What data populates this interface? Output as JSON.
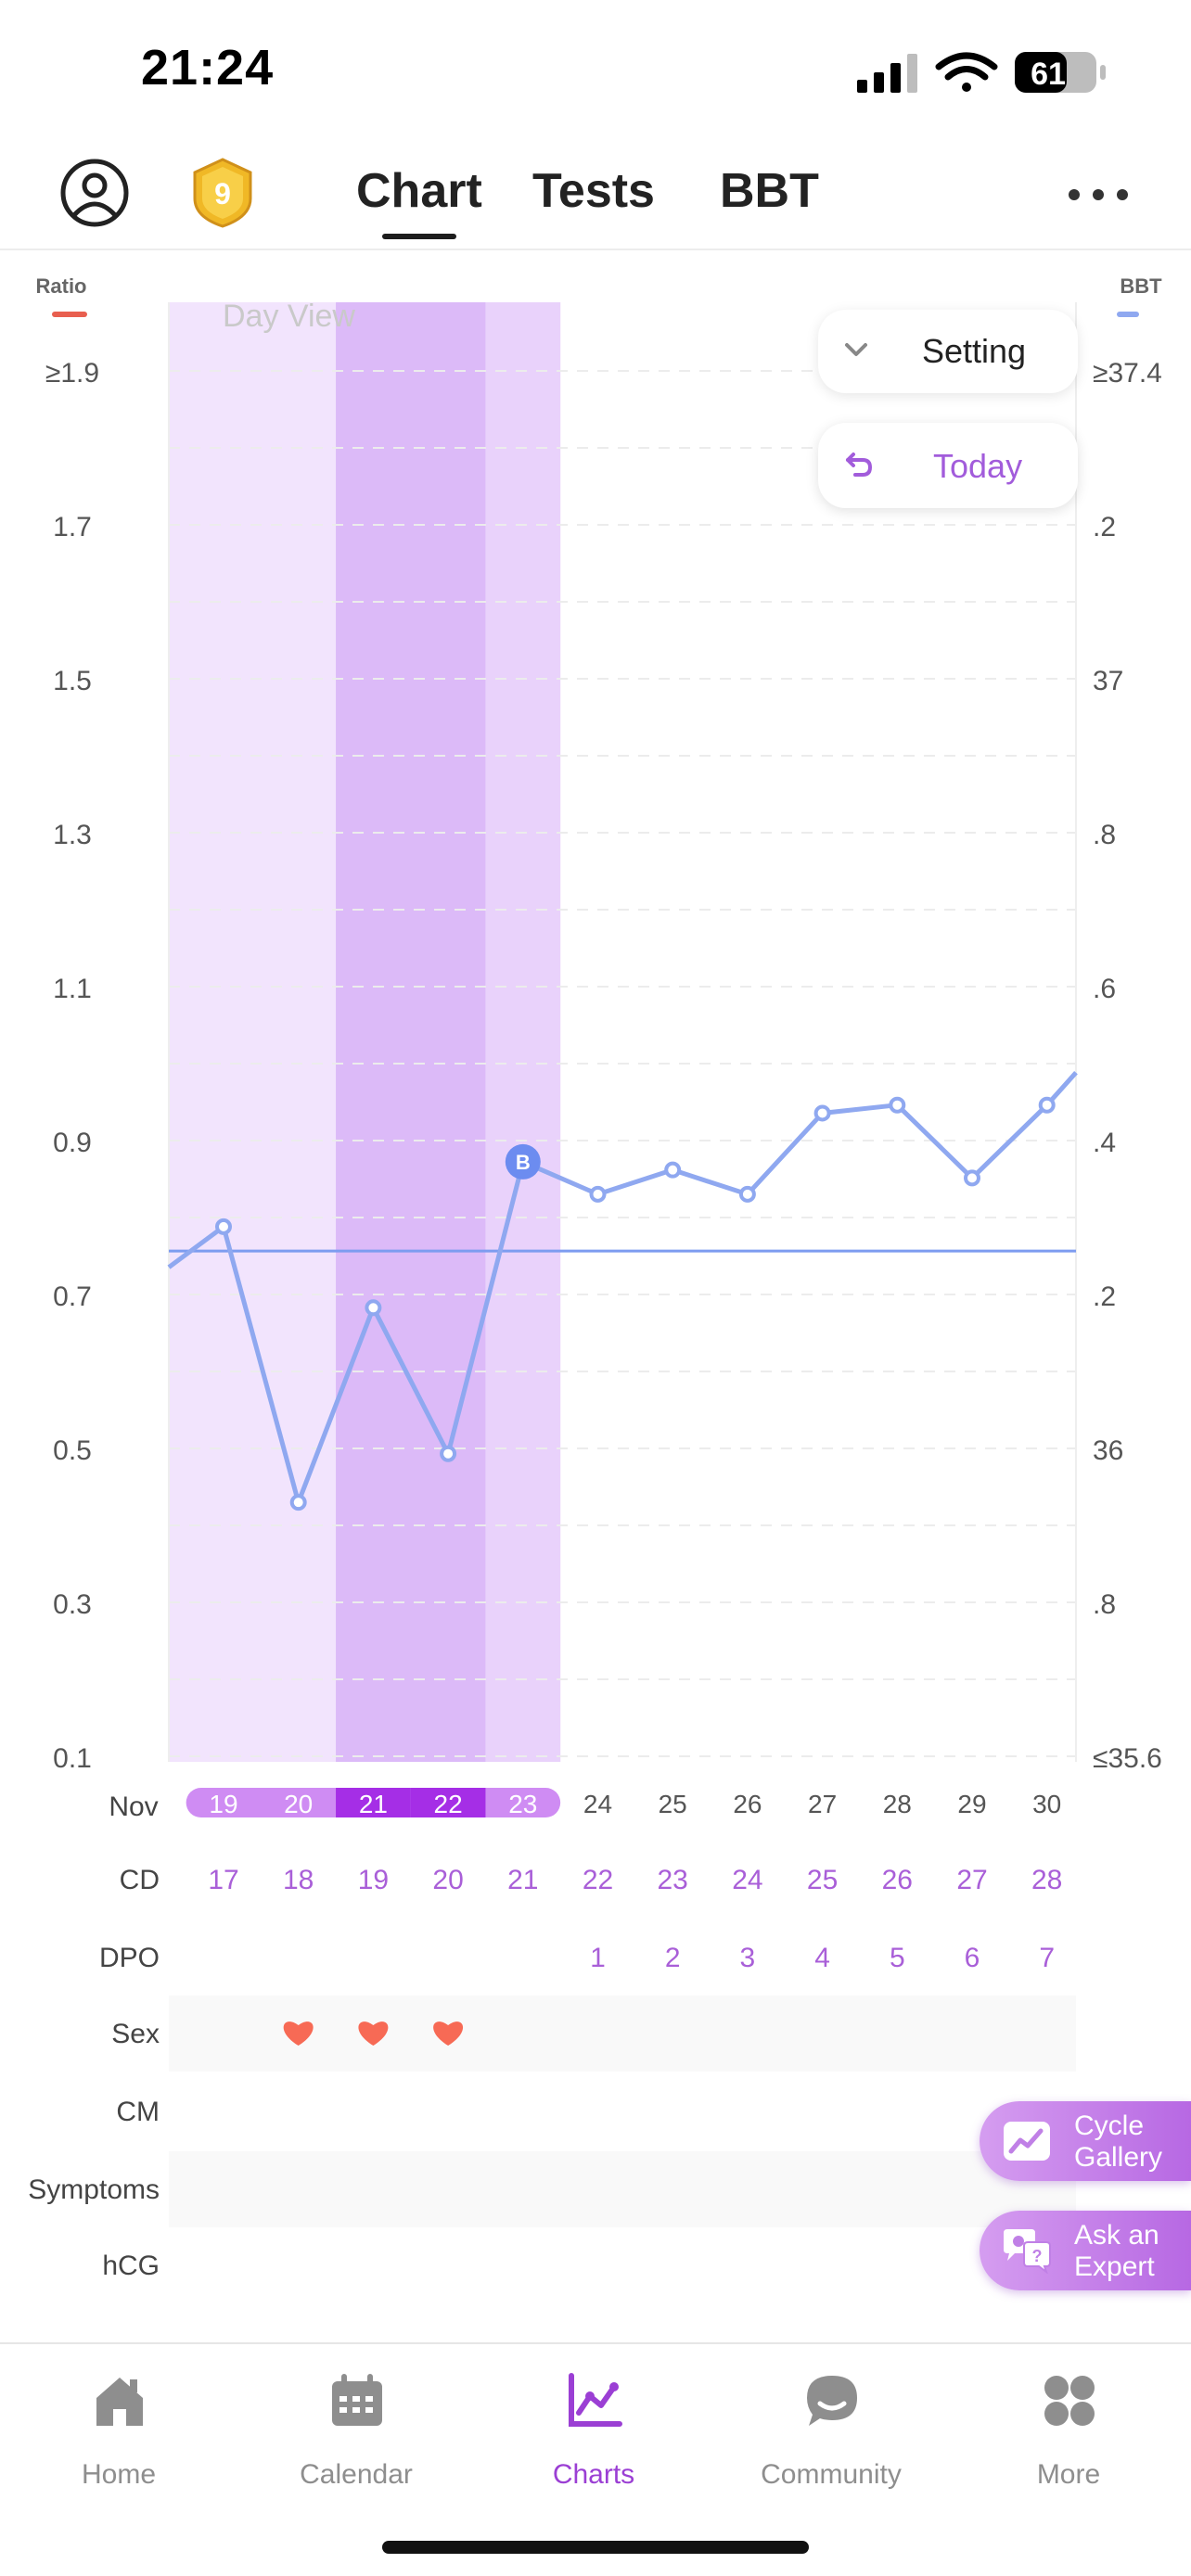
{
  "status_bar": {
    "time": "21:24",
    "battery": "61"
  },
  "nav": {
    "badge_number": "9",
    "tabs": [
      {
        "label": "Chart",
        "active": true
      },
      {
        "label": "Tests",
        "active": false
      },
      {
        "label": "BBT",
        "active": false
      }
    ]
  },
  "chart": {
    "day_view_label": "Day View",
    "left_axis_title": "Ratio",
    "right_axis_title": "BBT",
    "left_ticks": [
      "≥1.9",
      "1.7",
      "1.5",
      "1.3",
      "1.1",
      "0.9",
      "0.7",
      "0.5",
      "0.3",
      "0.1"
    ],
    "right_ticks": [
      "≥37.4",
      ".2",
      "37",
      ".8",
      ".6",
      ".4",
      ".2",
      "36",
      ".8",
      "≤35.6"
    ],
    "month_label": "Nov",
    "dates": [
      "19",
      "20",
      "21",
      "22",
      "23",
      "24",
      "25",
      "26",
      "27",
      "28",
      "29",
      "30"
    ],
    "date_highlight": [
      "fertile",
      "fertile",
      "peak",
      "peak",
      "fertile",
      "none",
      "none",
      "none",
      "none",
      "none",
      "none",
      "none"
    ],
    "row_labels": {
      "cd": "CD",
      "dpo": "DPO",
      "sex": "Sex",
      "cm": "CM",
      "symptoms": "Symptoms",
      "hcg": "hCG"
    },
    "cd_values": [
      "17",
      "18",
      "19",
      "20",
      "21",
      "22",
      "23",
      "24",
      "25",
      "26",
      "27",
      "28"
    ],
    "dpo_values": [
      "",
      "",
      "",
      "",
      "",
      "1",
      "2",
      "3",
      "4",
      "5",
      "6",
      "7"
    ],
    "sex_days": [
      false,
      true,
      true,
      true,
      false,
      false,
      false,
      false,
      false,
      false,
      false,
      false
    ],
    "fertile_window": {
      "start_index": 0,
      "end_index": 4
    },
    "peak_window": {
      "start_index": 2,
      "end_index": 3
    },
    "coverline": 36.23,
    "marker_label": "B",
    "marker_index": 4,
    "bbt_range": [
      35.6,
      37.4
    ],
    "bbt_prev_day": 36.21,
    "bbt_next_day": 36.45,
    "bbt_values": [
      36.26,
      35.92,
      36.16,
      35.98,
      36.34,
      36.3,
      36.33,
      36.3,
      36.4,
      36.41,
      36.32,
      36.41
    ],
    "colors": {
      "bbt_line": "#8fa8f0",
      "coverline": "#7d9cf0",
      "fertile": "#f2e4fd",
      "peak": "#dcbaf8",
      "heart": "#f76a55",
      "accent": "#9b3fd4"
    }
  },
  "buttons": {
    "setting": "Setting",
    "today": "Today"
  },
  "floating": [
    {
      "label": "Cycle\nGallery",
      "icon": "gallery-icon"
    },
    {
      "label": "Ask an\nExpert",
      "icon": "expert-chat-icon"
    }
  ],
  "tab_bar": [
    {
      "label": "Home",
      "icon": "home-icon",
      "active": false
    },
    {
      "label": "Calendar",
      "icon": "calendar-icon",
      "active": false
    },
    {
      "label": "Charts",
      "icon": "charts-icon",
      "active": true
    },
    {
      "label": "Community",
      "icon": "community-icon",
      "active": false
    },
    {
      "label": "More",
      "icon": "more-icon",
      "active": false
    }
  ]
}
